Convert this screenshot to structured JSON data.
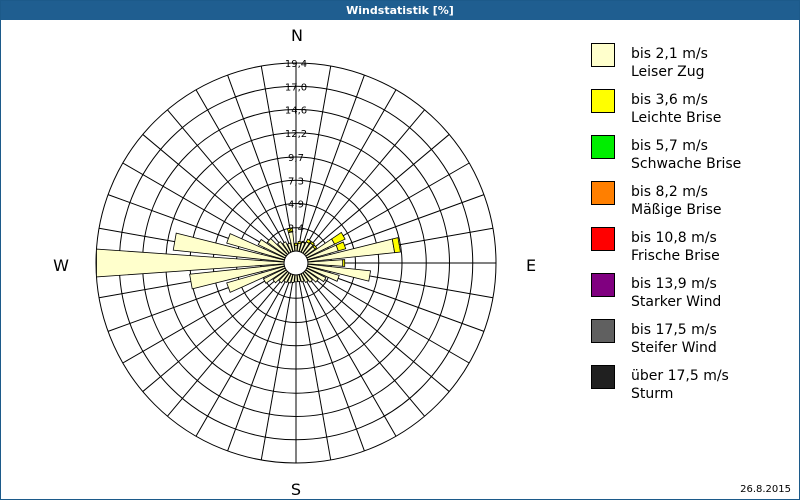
{
  "title": "Windstatistik [%]",
  "date": "26.8.2015",
  "directions": {
    "n": "N",
    "e": "E",
    "s": "S",
    "w": "W"
  },
  "legend": [
    {
      "speed": "bis 2,1 m/s",
      "name": "Leiser Zug",
      "color": "#ffffcc"
    },
    {
      "speed": "bis 3,6 m/s",
      "name": "Leichte Brise",
      "color": "#ffff00"
    },
    {
      "speed": "bis 5,7 m/s",
      "name": "Schwache Brise",
      "color": "#00ee00"
    },
    {
      "speed": "bis 8,2 m/s",
      "name": "Mäßige Brise",
      "color": "#ff7f00"
    },
    {
      "speed": "bis 10,8 m/s",
      "name": "Frische Brise",
      "color": "#ff0000"
    },
    {
      "speed": "bis 13,9 m/s",
      "name": "Starker Wind",
      "color": "#800080"
    },
    {
      "speed": "bis 17,5 m/s",
      "name": "Steifer Wind",
      "color": "#606060"
    },
    {
      "speed": "über 17,5 m/s",
      "name": "Sturm",
      "color": "#202020"
    }
  ],
  "chart_data": {
    "type": "wind-rose",
    "rings": [
      "2,4",
      "4,9",
      "7,3",
      "9,7",
      "12,2",
      "14,6",
      "17,0",
      "19,4"
    ],
    "ring_values": [
      2.4,
      4.9,
      7.3,
      9.7,
      12.2,
      14.6,
      17.0,
      19.4
    ],
    "rmax": 19.4,
    "sectors": 36,
    "series": [
      "bis 2,1 m/s",
      "bis 3,6 m/s"
    ],
    "bars": [
      {
        "dir": 0,
        "values": [
          0.6,
          0.2
        ]
      },
      {
        "dir": 10,
        "values": [
          0.8,
          0.2
        ]
      },
      {
        "dir": 20,
        "values": [
          1.0,
          0.1
        ]
      },
      {
        "dir": 30,
        "values": [
          1.2,
          0.3
        ]
      },
      {
        "dir": 40,
        "values": [
          1.3,
          0.2
        ]
      },
      {
        "dir": 50,
        "values": [
          1.2,
          0.2
        ]
      },
      {
        "dir": 60,
        "values": [
          3.2,
          1.2
        ]
      },
      {
        "dir": 70,
        "values": [
          3.3,
          0.8
        ]
      },
      {
        "dir": 80,
        "values": [
          9.0,
          0.6
        ]
      },
      {
        "dir": 90,
        "values": [
          3.6,
          0.2
        ]
      },
      {
        "dir": 100,
        "values": [
          6.5,
          0.0
        ]
      },
      {
        "dir": 110,
        "values": [
          3.4,
          0.0
        ]
      },
      {
        "dir": 120,
        "values": [
          2.2,
          0.0
        ]
      },
      {
        "dir": 130,
        "values": [
          1.6,
          0.0
        ]
      },
      {
        "dir": 140,
        "values": [
          1.2,
          0.0
        ]
      },
      {
        "dir": 150,
        "values": [
          1.0,
          0.0
        ]
      },
      {
        "dir": 160,
        "values": [
          0.8,
          0.0
        ]
      },
      {
        "dir": 170,
        "values": [
          0.7,
          0.0
        ]
      },
      {
        "dir": 180,
        "values": [
          0.7,
          0.0
        ]
      },
      {
        "dir": 190,
        "values": [
          0.8,
          0.0
        ]
      },
      {
        "dir": 200,
        "values": [
          0.9,
          0.0
        ]
      },
      {
        "dir": 210,
        "values": [
          1.0,
          0.0
        ]
      },
      {
        "dir": 220,
        "values": [
          1.3,
          0.0
        ]
      },
      {
        "dir": 230,
        "values": [
          1.7,
          0.0
        ]
      },
      {
        "dir": 240,
        "values": [
          2.5,
          0.0
        ]
      },
      {
        "dir": 250,
        "values": [
          6.2,
          0.0
        ]
      },
      {
        "dir": 260,
        "values": [
          9.8,
          0.0
        ]
      },
      {
        "dir": 270,
        "values": [
          19.4,
          0.0
        ]
      },
      {
        "dir": 280,
        "values": [
          11.5,
          0.0
        ]
      },
      {
        "dir": 290,
        "values": [
          6.2,
          0.0
        ]
      },
      {
        "dir": 300,
        "values": [
          3.1,
          0.0
        ]
      },
      {
        "dir": 310,
        "values": [
          2.4,
          0.0
        ]
      },
      {
        "dir": 320,
        "values": [
          1.5,
          0.0
        ]
      },
      {
        "dir": 330,
        "values": [
          1.2,
          0.0
        ]
      },
      {
        "dir": 340,
        "values": [
          0.9,
          0.0
        ]
      },
      {
        "dir": 350,
        "values": [
          2.0,
          0.4
        ]
      }
    ],
    "grid": true
  }
}
